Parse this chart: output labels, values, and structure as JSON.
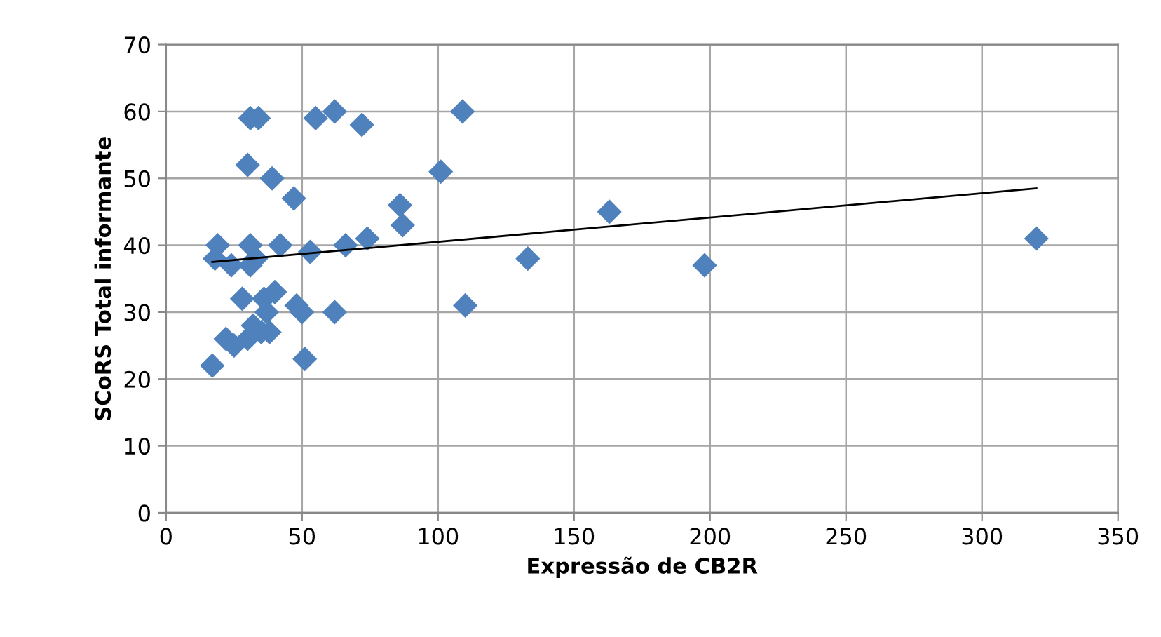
{
  "chart_data": {
    "type": "scatter",
    "xlabel": "Expressão de CB2R",
    "ylabel": "SCoRS Total informante",
    "xlim": [
      0,
      350
    ],
    "xticks": [
      0,
      50,
      100,
      150,
      200,
      250,
      300,
      350
    ],
    "ylim": [
      0,
      70
    ],
    "yticks": [
      0,
      10,
      20,
      30,
      40,
      50,
      60,
      70
    ],
    "grid": true,
    "marker": "diamond",
    "series": [
      {
        "color": "#4f81bd",
        "x": [
          17,
          18,
          19,
          22,
          25,
          24,
          28,
          31,
          30,
          30,
          31,
          31,
          32,
          33,
          34,
          35,
          36,
          37,
          38,
          39,
          40,
          42,
          47,
          48,
          50,
          51,
          53,
          55,
          62,
          62,
          66,
          72,
          74,
          86,
          87,
          101,
          109,
          110,
          133,
          163,
          198,
          320
        ],
        "values": [
          22,
          38,
          40,
          26,
          25,
          37,
          32,
          37,
          52,
          26,
          40,
          59,
          28,
          38,
          59,
          27,
          32,
          30,
          27,
          50,
          33,
          40,
          47,
          31,
          30,
          23,
          39,
          59,
          60,
          30,
          40,
          58,
          41,
          46,
          43,
          51,
          60,
          31,
          38,
          45,
          37,
          41
        ]
      },
      {
        "type": "line",
        "color": "#000000",
        "x": [
          17,
          320
        ],
        "values": [
          37.5,
          48.5
        ],
        "marker": "none",
        "line_style": "solid"
      }
    ]
  }
}
